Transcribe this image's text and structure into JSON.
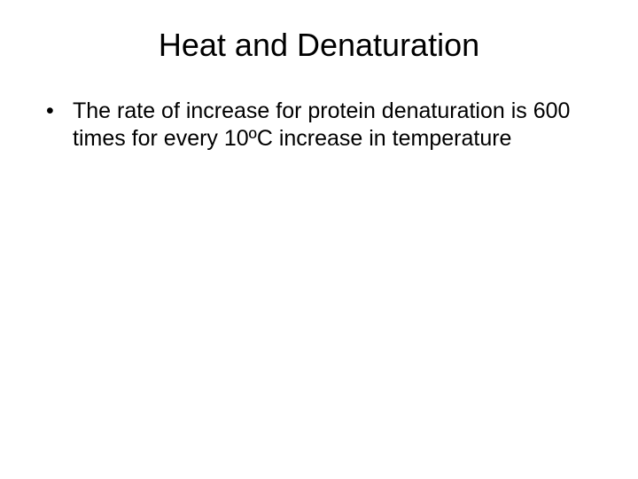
{
  "slide": {
    "title": "Heat and Denaturation",
    "bullets": [
      {
        "text": "The rate of increase for protein denaturation is 600 times for every 10ºC increase in temperature"
      }
    ],
    "background_color": "#ffffff",
    "text_color": "#000000",
    "title_fontsize": 36,
    "body_fontsize": 25,
    "font_family": "Arial"
  }
}
